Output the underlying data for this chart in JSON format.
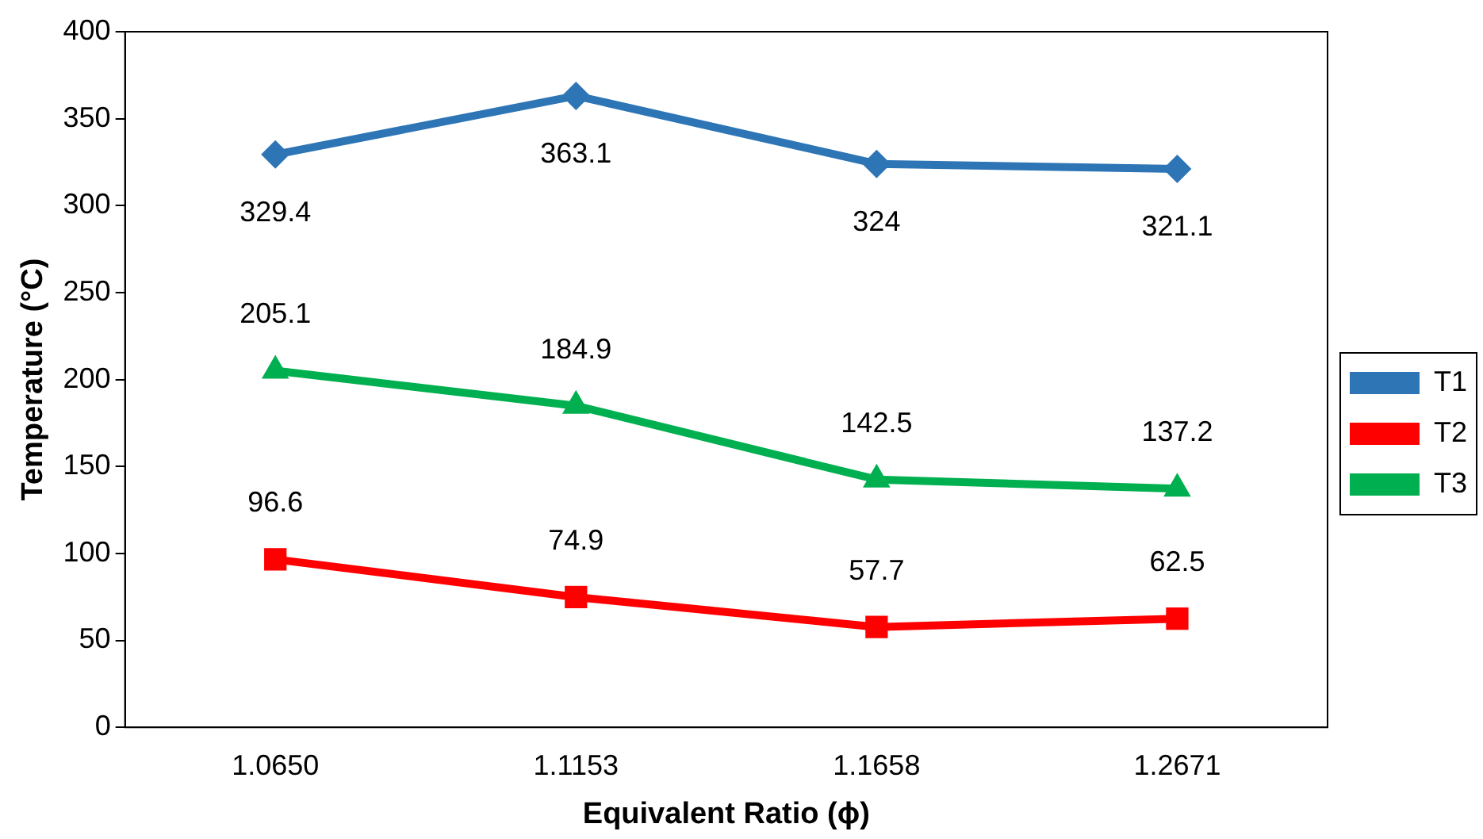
{
  "chart_data": {
    "type": "line",
    "xlabel": "Equivalent Ratio (ϕ)",
    "ylabel": "Temperature (°C)",
    "categories": [
      "1.0650",
      "1.1153",
      "1.1658",
      "1.2671"
    ],
    "series": [
      {
        "name": "T1",
        "color": "#2e75b6",
        "marker": "diamond",
        "values": [
          329.4,
          363.1,
          324,
          321.1
        ]
      },
      {
        "name": "T2",
        "color": "#ff0000",
        "marker": "square",
        "values": [
          96.6,
          74.9,
          57.7,
          62.5
        ]
      },
      {
        "name": "T3",
        "color": "#00b050",
        "marker": "triangle",
        "values": [
          205.1,
          184.9,
          142.5,
          137.2
        ]
      }
    ],
    "ylim": [
      0,
      400
    ],
    "yticks": [
      0,
      50,
      100,
      150,
      200,
      250,
      300,
      350,
      400
    ],
    "grid": false,
    "legend": "right",
    "data_labels": true,
    "line_style": "solid"
  }
}
